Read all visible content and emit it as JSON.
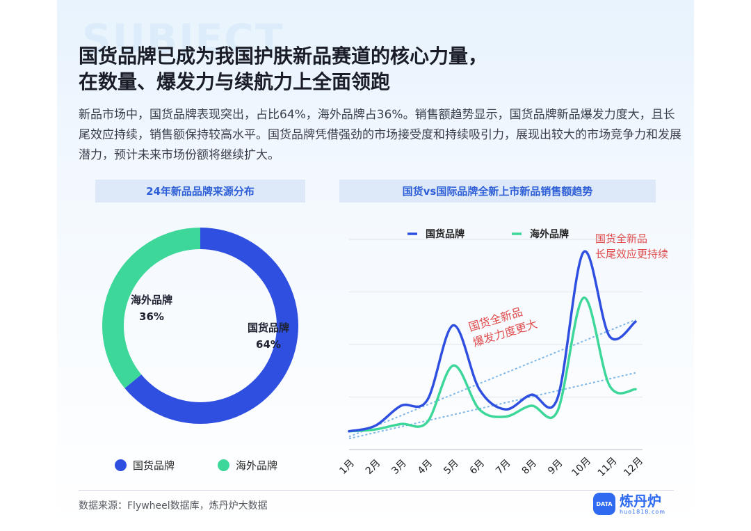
{
  "title_lines": [
    "国货品牌已成为我国护肤新品赛道的核心力量，",
    "在数量、爆发力与续航力上全面领跑"
  ],
  "background_word": "SUBJECT",
  "description": "新品市场中，国货品牌表现突出，占比64%，海外品牌占36%。销售额趋势显示，国货品牌新品爆发力度大，且长尾效应持续，销售额保持较高水平。国货品牌凭借强劲的市场接受度和持续吸引力，展现出较大的市场竞争力和发展潜力，预计未来市场份额将继续扩大。",
  "colors": {
    "domestic": "#2f4fe0",
    "overseas": "#3ed79a",
    "annotation": "#e04b4b",
    "trend": "#7fb6e6"
  },
  "source": "数据来源：Flywheel数据库，炼丹炉大数据",
  "logo": {
    "name": "炼丹炉",
    "url": "huo1818.com",
    "badge": "DATA"
  },
  "chart_data": [
    {
      "type": "pie",
      "title": "24年新品品牌来源分布",
      "donut": true,
      "slices": [
        {
          "name": "国货品牌",
          "value": 64,
          "label": "64%"
        },
        {
          "name": "海外品牌",
          "value": 36,
          "label": "36%"
        }
      ],
      "legend": [
        "国货品牌",
        "海外品牌"
      ],
      "legend_placement": "bottom"
    },
    {
      "type": "line",
      "title": "国货vs国际品牌全新上市新品销售额趋势",
      "categories": [
        "1月",
        "2月",
        "3月",
        "4月",
        "5月",
        "6月",
        "7月",
        "8月",
        "9月",
        "10月",
        "11月",
        "12月"
      ],
      "series": [
        {
          "name": "国货品牌",
          "values": [
            10,
            13,
            24,
            27,
            68,
            33,
            22,
            30,
            28,
            108,
            62,
            70
          ]
        },
        {
          "name": "海外品牌",
          "values": [
            10,
            11,
            14,
            15,
            46,
            22,
            18,
            24,
            21,
            83,
            35,
            33
          ]
        }
      ],
      "trendlines": [
        {
          "series": "国货品牌",
          "from": 7,
          "to": 71
        },
        {
          "series": "海外品牌",
          "from": 6,
          "to": 42
        }
      ],
      "ylim": [
        0,
        115
      ],
      "y_tick_labels": false,
      "grid": true,
      "legend_placement": "top",
      "annotations": [
        {
          "lines": [
            "国货全新品",
            "长尾效应更持续"
          ]
        },
        {
          "lines": [
            "国货全新品",
            "爆发力度更大"
          ]
        }
      ]
    }
  ]
}
